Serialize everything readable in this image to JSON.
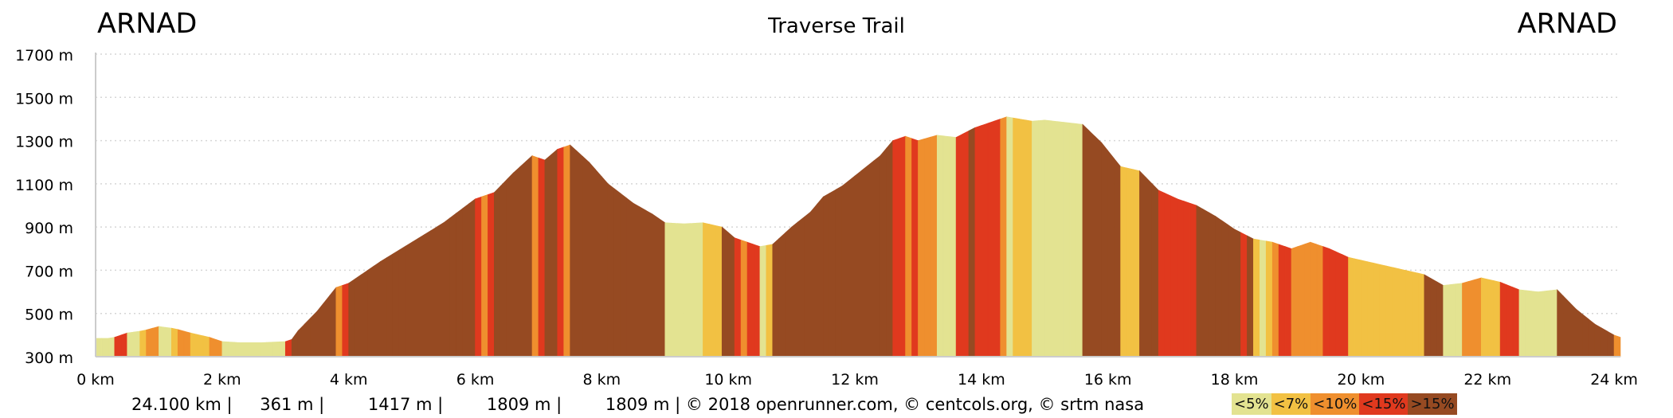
{
  "header": {
    "start": "ARNAD",
    "end": "ARNAD"
  },
  "chart_data": {
    "type": "area",
    "title": "Traverse Trail",
    "x_unit": "km",
    "y_unit": "m",
    "xlim": [
      0,
      24.1
    ],
    "ylim": [
      300,
      1700
    ],
    "x_ticks": [
      "0 km",
      "2 km",
      "4 km",
      "6 km",
      "8 km",
      "10 km",
      "12 km",
      "14 km",
      "16 km",
      "18 km",
      "20 km",
      "22 km",
      "24 km"
    ],
    "y_ticks": [
      "300 m",
      "500 m",
      "700 m",
      "900 m",
      "1100 m",
      "1300 m",
      "1500 m",
      "1700 m"
    ],
    "grid": "horizontal dotted",
    "profile": [
      [
        0.0,
        385
      ],
      [
        0.25,
        385
      ],
      [
        0.5,
        410
      ],
      [
        0.75,
        420
      ],
      [
        1.0,
        440
      ],
      [
        1.25,
        430
      ],
      [
        1.5,
        410
      ],
      [
        1.8,
        390
      ],
      [
        2.0,
        370
      ],
      [
        2.3,
        365
      ],
      [
        2.6,
        365
      ],
      [
        3.0,
        370
      ],
      [
        3.1,
        380
      ],
      [
        3.2,
        420
      ],
      [
        3.5,
        510
      ],
      [
        3.8,
        620
      ],
      [
        4.0,
        640
      ],
      [
        4.2,
        680
      ],
      [
        4.5,
        740
      ],
      [
        5.0,
        830
      ],
      [
        5.5,
        920
      ],
      [
        6.0,
        1030
      ],
      [
        6.3,
        1060
      ],
      [
        6.6,
        1150
      ],
      [
        6.9,
        1230
      ],
      [
        7.1,
        1210
      ],
      [
        7.3,
        1260
      ],
      [
        7.5,
        1280
      ],
      [
        7.8,
        1200
      ],
      [
        8.1,
        1100
      ],
      [
        8.5,
        1010
      ],
      [
        8.8,
        960
      ],
      [
        9.0,
        920
      ],
      [
        9.3,
        915
      ],
      [
        9.6,
        920
      ],
      [
        9.9,
        900
      ],
      [
        10.1,
        850
      ],
      [
        10.3,
        830
      ],
      [
        10.5,
        810
      ],
      [
        10.7,
        820
      ],
      [
        11.0,
        900
      ],
      [
        11.3,
        970
      ],
      [
        11.5,
        1040
      ],
      [
        11.8,
        1090
      ],
      [
        12.1,
        1160
      ],
      [
        12.4,
        1230
      ],
      [
        12.6,
        1300
      ],
      [
        12.8,
        1320
      ],
      [
        13.0,
        1300
      ],
      [
        13.3,
        1325
      ],
      [
        13.6,
        1315
      ],
      [
        13.9,
        1360
      ],
      [
        14.2,
        1390
      ],
      [
        14.4,
        1410
      ],
      [
        14.6,
        1400
      ],
      [
        14.8,
        1390
      ],
      [
        15.0,
        1395
      ],
      [
        15.3,
        1385
      ],
      [
        15.6,
        1375
      ],
      [
        15.9,
        1290
      ],
      [
        16.2,
        1180
      ],
      [
        16.5,
        1160
      ],
      [
        16.8,
        1070
      ],
      [
        17.1,
        1030
      ],
      [
        17.4,
        1000
      ],
      [
        17.7,
        950
      ],
      [
        18.0,
        890
      ],
      [
        18.3,
        845
      ],
      [
        18.6,
        830
      ],
      [
        18.9,
        800
      ],
      [
        19.2,
        830
      ],
      [
        19.5,
        800
      ],
      [
        19.8,
        760
      ],
      [
        20.1,
        740
      ],
      [
        20.4,
        720
      ],
      [
        20.7,
        700
      ],
      [
        21.0,
        680
      ],
      [
        21.3,
        630
      ],
      [
        21.6,
        640
      ],
      [
        21.9,
        665
      ],
      [
        22.2,
        645
      ],
      [
        22.5,
        610
      ],
      [
        22.8,
        600
      ],
      [
        23.1,
        610
      ],
      [
        23.4,
        520
      ],
      [
        23.7,
        450
      ],
      [
        24.0,
        400
      ],
      [
        24.1,
        390
      ]
    ],
    "gradient_legend": [
      {
        "label": "<5%",
        "color": "#e3e391"
      },
      {
        "label": "<7%",
        "color": "#f2c143"
      },
      {
        "label": "<10%",
        "color": "#ef8f2e"
      },
      {
        "label": "<15%",
        "color": "#e0391e"
      },
      {
        "label": ">15%",
        "color": "#964a22"
      }
    ]
  },
  "stats": {
    "distance": "24.100 km |",
    "min_alt": "361 m |",
    "max_alt": "1417 m |",
    "ascent": "1809 m |",
    "descent": "1809 m | © 2018 openrunner.com, © centcols.org, © srtm nasa"
  }
}
